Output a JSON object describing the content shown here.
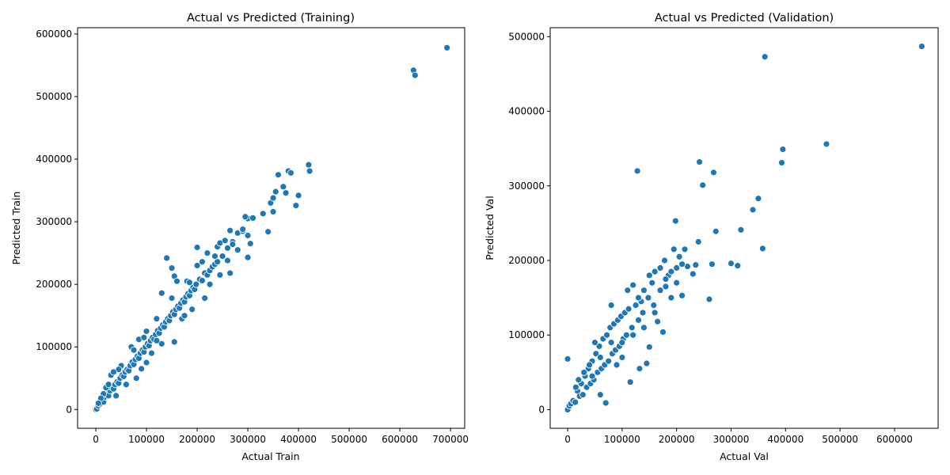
{
  "colors": {
    "point_fill": "#1f77b4",
    "point_edge": "#ffffff"
  },
  "chart_data": [
    {
      "type": "scatter",
      "title": "Actual vs Predicted (Training)",
      "xlabel": "Actual Train",
      "ylabel": "Predicted Train",
      "xlim": [
        -36000,
        728000
      ],
      "ylim": [
        -30000,
        610000
      ],
      "xticks": [
        0,
        100000,
        200000,
        300000,
        400000,
        500000,
        600000,
        700000
      ],
      "yticks": [
        0,
        100000,
        200000,
        300000,
        400000,
        500000,
        600000
      ],
      "xtick_labels": [
        "0",
        "100000",
        "200000",
        "300000",
        "400000",
        "500000",
        "600000",
        "700000"
      ],
      "ytick_labels": [
        "0",
        "100000",
        "200000",
        "300000",
        "400000",
        "500000",
        "600000"
      ],
      "grid": false,
      "points": [
        [
          0,
          0
        ],
        [
          2000,
          1000
        ],
        [
          5000,
          6000
        ],
        [
          8000,
          9000
        ],
        [
          12000,
          14000
        ],
        [
          15000,
          12000
        ],
        [
          18000,
          20000
        ],
        [
          22000,
          24000
        ],
        [
          25000,
          22000
        ],
        [
          28000,
          30000
        ],
        [
          32000,
          35000
        ],
        [
          35000,
          33000
        ],
        [
          38000,
          40000
        ],
        [
          42000,
          44000
        ],
        [
          45000,
          42000
        ],
        [
          48000,
          50000
        ],
        [
          52000,
          55000
        ],
        [
          55000,
          53000
        ],
        [
          58000,
          60000
        ],
        [
          62000,
          64000
        ],
        [
          65000,
          62000
        ],
        [
          68000,
          70000
        ],
        [
          72000,
          76000
        ],
        [
          75000,
          72000
        ],
        [
          78000,
          80000
        ],
        [
          82000,
          85000
        ],
        [
          85000,
          82000
        ],
        [
          88000,
          90000
        ],
        [
          92000,
          95000
        ],
        [
          95000,
          92000
        ],
        [
          98000,
          100000
        ],
        [
          102000,
          105000
        ],
        [
          105000,
          102000
        ],
        [
          108000,
          110000
        ],
        [
          112000,
          115000
        ],
        [
          115000,
          112000
        ],
        [
          118000,
          120000
        ],
        [
          122000,
          126000
        ],
        [
          125000,
          122000
        ],
        [
          128000,
          130000
        ],
        [
          132000,
          135000
        ],
        [
          135000,
          132000
        ],
        [
          138000,
          140000
        ],
        [
          142000,
          145000
        ],
        [
          145000,
          142000
        ],
        [
          148000,
          150000
        ],
        [
          152000,
          156000
        ],
        [
          155000,
          152000
        ],
        [
          158000,
          160000
        ],
        [
          162000,
          165000
        ],
        [
          165000,
          162000
        ],
        [
          168000,
          170000
        ],
        [
          172000,
          175000
        ],
        [
          175000,
          172000
        ],
        [
          178000,
          180000
        ],
        [
          182000,
          185000
        ],
        [
          185000,
          182000
        ],
        [
          188000,
          190000
        ],
        [
          192000,
          195000
        ],
        [
          195000,
          192000
        ],
        [
          198000,
          200000
        ],
        [
          205000,
          208000
        ],
        [
          210000,
          206000
        ],
        [
          215000,
          218000
        ],
        [
          220000,
          215000
        ],
        [
          225000,
          222000
        ],
        [
          230000,
          228000
        ],
        [
          235000,
          232000
        ],
        [
          240000,
          236000
        ],
        [
          250000,
          245000
        ],
        [
          260000,
          258000
        ],
        [
          270000,
          268000
        ],
        [
          280000,
          282000
        ],
        [
          290000,
          285000
        ],
        [
          300000,
          305000
        ],
        [
          20000,
          35000
        ],
        [
          30000,
          55000
        ],
        [
          40000,
          22000
        ],
        [
          50000,
          70000
        ],
        [
          60000,
          40000
        ],
        [
          70000,
          100000
        ],
        [
          80000,
          50000
        ],
        [
          90000,
          65000
        ],
        [
          100000,
          125000
        ],
        [
          110000,
          90000
        ],
        [
          120000,
          145000
        ],
        [
          130000,
          105000
        ],
        [
          140000,
          242000
        ],
        [
          150000,
          226000
        ],
        [
          155000,
          213000
        ],
        [
          160000,
          205000
        ],
        [
          130000,
          186000
        ],
        [
          155000,
          108000
        ],
        [
          200000,
          259000
        ],
        [
          200000,
          230000
        ],
        [
          210000,
          236000
        ],
        [
          220000,
          250000
        ],
        [
          240000,
          260000
        ],
        [
          245000,
          266000
        ],
        [
          255000,
          270000
        ],
        [
          265000,
          286000
        ],
        [
          270000,
          264000
        ],
        [
          260000,
          238000
        ],
        [
          265000,
          218000
        ],
        [
          290000,
          288000
        ],
        [
          295000,
          308000
        ],
        [
          300000,
          278000
        ],
        [
          305000,
          265000
        ],
        [
          310000,
          306000
        ],
        [
          330000,
          313000
        ],
        [
          340000,
          284000
        ],
        [
          345000,
          330000
        ],
        [
          350000,
          338000
        ],
        [
          355000,
          348000
        ],
        [
          360000,
          375000
        ],
        [
          370000,
          356000
        ],
        [
          375000,
          346000
        ],
        [
          380000,
          381000
        ],
        [
          385000,
          378000
        ],
        [
          395000,
          326000
        ],
        [
          400000,
          342000
        ],
        [
          420000,
          391000
        ],
        [
          422000,
          381000
        ],
        [
          350000,
          316000
        ],
        [
          300000,
          243000
        ],
        [
          280000,
          255000
        ],
        [
          627000,
          542000
        ],
        [
          630000,
          534000
        ],
        [
          693000,
          578000
        ],
        [
          170000,
          145000
        ],
        [
          180000,
          205000
        ],
        [
          190000,
          160000
        ],
        [
          215000,
          178000
        ],
        [
          225000,
          200000
        ],
        [
          235000,
          245000
        ],
        [
          245000,
          215000
        ],
        [
          150000,
          178000
        ],
        [
          175000,
          150000
        ],
        [
          185000,
          203000
        ],
        [
          120000,
          110000
        ],
        [
          100000,
          75000
        ],
        [
          75000,
          95000
        ],
        [
          85000,
          112000
        ],
        [
          95000,
          115000
        ],
        [
          45000,
          64000
        ],
        [
          35000,
          60000
        ],
        [
          25000,
          40000
        ],
        [
          15000,
          25000
        ],
        [
          10000,
          18000
        ],
        [
          5000,
          10000
        ]
      ]
    },
    {
      "type": "scatter",
      "title": "Actual vs Predicted (Validation)",
      "xlabel": "Actual Val",
      "ylabel": "Predicted Val",
      "xlim": [
        -32000,
        680000
      ],
      "ylim": [
        -25000,
        512000
      ],
      "xticks": [
        0,
        100000,
        200000,
        300000,
        400000,
        500000,
        600000
      ],
      "yticks": [
        0,
        100000,
        200000,
        300000,
        400000,
        500000
      ],
      "xtick_labels": [
        "0",
        "100000",
        "200000",
        "300000",
        "400000",
        "500000",
        "600000"
      ],
      "ytick_labels": [
        "0",
        "100000",
        "200000",
        "300000",
        "400000",
        "500000"
      ],
      "grid": false,
      "points": [
        [
          0,
          0
        ],
        [
          0,
          68000
        ],
        [
          3000,
          5000
        ],
        [
          6000,
          8000
        ],
        [
          10000,
          12000
        ],
        [
          14000,
          10000
        ],
        [
          18000,
          25000
        ],
        [
          22000,
          18000
        ],
        [
          25000,
          35000
        ],
        [
          28000,
          20000
        ],
        [
          32000,
          45000
        ],
        [
          35000,
          30000
        ],
        [
          38000,
          55000
        ],
        [
          42000,
          35000
        ],
        [
          45000,
          65000
        ],
        [
          48000,
          40000
        ],
        [
          52000,
          75000
        ],
        [
          55000,
          50000
        ],
        [
          58000,
          85000
        ],
        [
          62000,
          55000
        ],
        [
          65000,
          95000
        ],
        [
          68000,
          60000
        ],
        [
          72000,
          100000
        ],
        [
          75000,
          65000
        ],
        [
          78000,
          110000
        ],
        [
          80000,
          140000
        ],
        [
          82000,
          75000
        ],
        [
          85000,
          115000
        ],
        [
          88000,
          80000
        ],
        [
          92000,
          120000
        ],
        [
          95000,
          85000
        ],
        [
          98000,
          125000
        ],
        [
          102000,
          95000
        ],
        [
          105000,
          130000
        ],
        [
          108000,
          100000
        ],
        [
          112000,
          135000
        ],
        [
          115000,
          37000
        ],
        [
          118000,
          110000
        ],
        [
          120000,
          167000
        ],
        [
          125000,
          140000
        ],
        [
          128000,
          320000
        ],
        [
          130000,
          120000
        ],
        [
          132000,
          55000
        ],
        [
          135000,
          145000
        ],
        [
          138000,
          130000
        ],
        [
          140000,
          160000
        ],
        [
          145000,
          62000
        ],
        [
          148000,
          150000
        ],
        [
          150000,
          84000
        ],
        [
          155000,
          170000
        ],
        [
          158000,
          140000
        ],
        [
          160000,
          185000
        ],
        [
          165000,
          118000
        ],
        [
          170000,
          190000
        ],
        [
          175000,
          104000
        ],
        [
          178000,
          200000
        ],
        [
          180000,
          165000
        ],
        [
          185000,
          180000
        ],
        [
          190000,
          150000
        ],
        [
          195000,
          215000
        ],
        [
          198000,
          253000
        ],
        [
          200000,
          190000
        ],
        [
          205000,
          205000
        ],
        [
          210000,
          153000
        ],
        [
          215000,
          215000
        ],
        [
          220000,
          192000
        ],
        [
          230000,
          182000
        ],
        [
          235000,
          194000
        ],
        [
          240000,
          225000
        ],
        [
          242000,
          332000
        ],
        [
          248000,
          301000
        ],
        [
          260000,
          148000
        ],
        [
          265000,
          195000
        ],
        [
          268000,
          318000
        ],
        [
          272000,
          239000
        ],
        [
          300000,
          196000
        ],
        [
          312000,
          193000
        ],
        [
          318000,
          241000
        ],
        [
          340000,
          268000
        ],
        [
          350000,
          283000
        ],
        [
          358000,
          216000
        ],
        [
          362000,
          473000
        ],
        [
          393000,
          331000
        ],
        [
          395000,
          349000
        ],
        [
          475000,
          356000
        ],
        [
          650000,
          487000
        ],
        [
          70000,
          9000
        ],
        [
          60000,
          20000
        ],
        [
          40000,
          60000
        ],
        [
          50000,
          90000
        ],
        [
          30000,
          50000
        ],
        [
          20000,
          40000
        ],
        [
          15000,
          30000
        ],
        [
          90000,
          60000
        ],
        [
          100000,
          70000
        ],
        [
          110000,
          160000
        ],
        [
          140000,
          110000
        ],
        [
          160000,
          130000
        ],
        [
          170000,
          160000
        ],
        [
          180000,
          175000
        ],
        [
          190000,
          185000
        ],
        [
          200000,
          170000
        ],
        [
          210000,
          195000
        ],
        [
          150000,
          180000
        ],
        [
          130000,
          150000
        ],
        [
          120000,
          100000
        ],
        [
          100000,
          90000
        ],
        [
          80000,
          90000
        ],
        [
          60000,
          70000
        ],
        [
          45000,
          45000
        ]
      ]
    }
  ]
}
